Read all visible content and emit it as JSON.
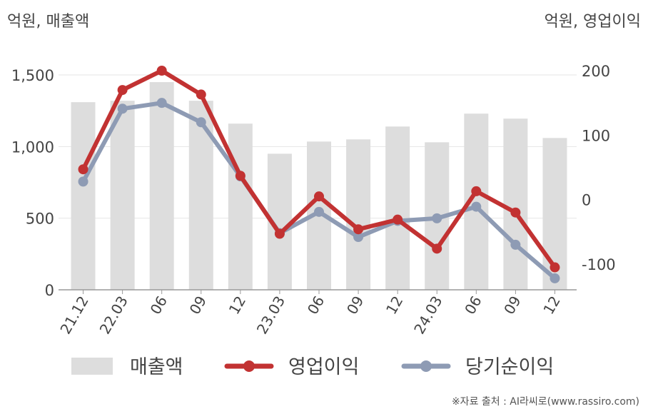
{
  "chart_data": {
    "type": "bar+line",
    "left_axis_title": "억원, 매출액",
    "right_axis_title": "억원, 영업이익",
    "categories": [
      "21.12",
      "22.03",
      "06",
      "09",
      "12",
      "23.03",
      "06",
      "09",
      "12",
      "24.03",
      "06",
      "09",
      "12"
    ],
    "left_ylim": [
      0,
      1500
    ],
    "left_ticks": [
      0,
      500,
      1000,
      1500
    ],
    "left_tick_labels": [
      "0",
      "500",
      "1,000",
      "1,500"
    ],
    "right_ylim": [
      -140,
      200
    ],
    "right_ticks": [
      -100,
      0,
      100,
      200
    ],
    "right_tick_labels": [
      "-100",
      "0",
      "100",
      "200"
    ],
    "series": [
      {
        "name": "매출액",
        "type": "bar",
        "axis": "left",
        "color": "#dddddd",
        "values": [
          1310,
          1320,
          1450,
          1320,
          1160,
          950,
          1035,
          1050,
          1140,
          1030,
          1230,
          1195,
          1060
        ]
      },
      {
        "name": "영업이익",
        "type": "line",
        "axis": "right",
        "color": "#c23232",
        "values": [
          47,
          170,
          200,
          163,
          37,
          -53,
          5,
          -46,
          -31,
          -76,
          13,
          -20,
          -105
        ]
      },
      {
        "name": "당기순이익",
        "type": "line",
        "axis": "right",
        "color": "#8e9bb4",
        "values": [
          28,
          141,
          150,
          120,
          36,
          -52,
          -19,
          -58,
          -33,
          -29,
          -11,
          -70,
          -122
        ]
      }
    ],
    "grid": true,
    "legend_position": "bottom"
  },
  "source_note": "※자료 출처 : AI라씨로(www.rassiro.com)"
}
